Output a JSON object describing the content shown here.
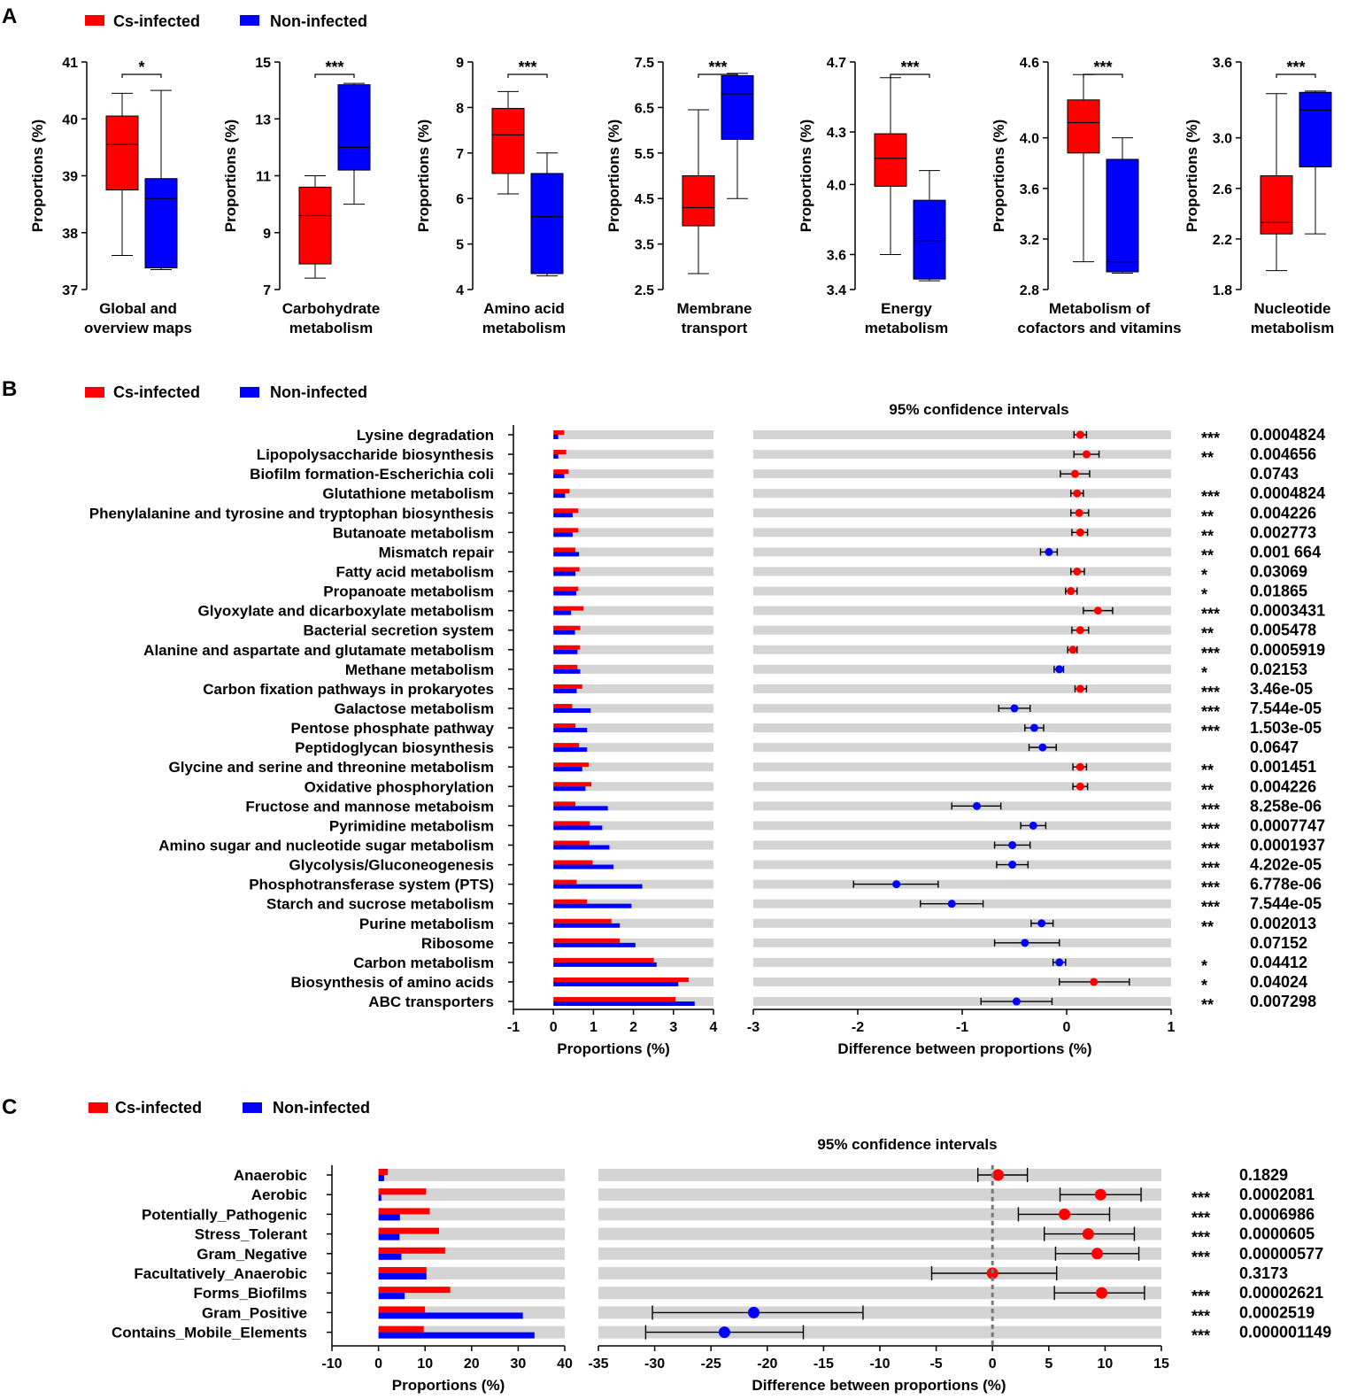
{
  "colors": {
    "infected": "#ff0000",
    "noninfected": "#0000ff",
    "track": "#d4d4d4"
  },
  "panels": {
    "a": "A",
    "b": "B",
    "c": "C"
  },
  "legend": {
    "infected": "Cs-infected",
    "noninfected": "Non-infected"
  },
  "chart_data": [
    {
      "type": "box",
      "panel": "A",
      "ylabel": "Proportions (%)",
      "plots": [
        {
          "category": [
            "Global and",
            "overview maps"
          ],
          "ylim": [
            37,
            41
          ],
          "ticks": [
            37,
            38,
            39,
            40,
            41
          ],
          "tick_labels": [
            "37",
            "38",
            "39",
            "40",
            "41"
          ],
          "sig": "*",
          "infected": {
            "min": 37.6,
            "q1": 38.75,
            "median": 39.55,
            "q3": 40.05,
            "max": 40.45
          },
          "noninfected": {
            "min": 37.35,
            "q1": 37.38,
            "median": 38.6,
            "q3": 38.95,
            "max": 40.5
          }
        },
        {
          "category": [
            "Carbohydrate",
            "metabolism"
          ],
          "ylim": [
            7,
            15
          ],
          "ticks": [
            7,
            9,
            11,
            13,
            15
          ],
          "tick_labels": [
            "7",
            "9",
            "11",
            "13",
            "15"
          ],
          "sig": "***",
          "infected": {
            "min": 7.4,
            "q1": 7.9,
            "median": 9.6,
            "q3": 10.6,
            "max": 11.0
          },
          "noninfected": {
            "min": 10.0,
            "q1": 11.2,
            "median": 12.0,
            "q3": 14.2,
            "max": 14.25
          }
        },
        {
          "category": [
            "Amino acid",
            "metabolism"
          ],
          "ylim": [
            4,
            9
          ],
          "ticks": [
            4,
            5,
            6,
            7,
            8,
            9
          ],
          "tick_labels": [
            "4",
            "5",
            "6",
            "7",
            "8",
            "9"
          ],
          "sig": "***",
          "infected": {
            "min": 6.1,
            "q1": 6.55,
            "median": 7.4,
            "q3": 7.98,
            "max": 8.35
          },
          "noninfected": {
            "min": 4.3,
            "q1": 4.35,
            "median": 5.6,
            "q3": 6.55,
            "max": 7.0
          }
        },
        {
          "category": [
            "Membrane",
            "transport"
          ],
          "ylim": [
            2.5,
            7.5
          ],
          "ticks": [
            2.5,
            3.5,
            4.5,
            5.5,
            6.5,
            7.5
          ],
          "tick_labels": [
            "2.5",
            "3.5",
            "4.5",
            "5.5",
            "6.5",
            "7.5"
          ],
          "sig": "***",
          "infected": {
            "min": 2.85,
            "q1": 3.9,
            "median": 4.3,
            "q3": 5.0,
            "max": 6.45
          },
          "noninfected": {
            "min": 4.5,
            "q1": 5.8,
            "median": 6.8,
            "q3": 7.2,
            "max": 7.25
          }
        },
        {
          "category": [
            "Energy",
            "metabolism"
          ],
          "ylim": [
            3.4,
            4.7
          ],
          "ticks": [
            3.4,
            3.6,
            4.0,
            4.3,
            4.7
          ],
          "tick_labels": [
            "3.4",
            "3.6",
            "4.0",
            "4.3",
            "4.7"
          ],
          "sig": "***",
          "infected": {
            "min": 3.6,
            "q1": 3.99,
            "median": 4.15,
            "q3": 4.29,
            "max": 4.61
          },
          "noninfected": {
            "min": 3.45,
            "q1": 3.46,
            "median": 3.68,
            "q3": 3.91,
            "max": 4.08
          }
        },
        {
          "category": [
            "Metabolism of",
            "cofactors and vitamins"
          ],
          "ylim": [
            2.8,
            4.6
          ],
          "ticks": [
            2.8,
            3.2,
            3.6,
            4.0,
            4.6
          ],
          "tick_labels": [
            "2.8",
            "3.2",
            "3.6",
            "4.0",
            "4.6"
          ],
          "sig": "***",
          "infected": {
            "min": 3.02,
            "q1": 3.88,
            "median": 4.12,
            "q3": 4.3,
            "max": 4.5
          },
          "noninfected": {
            "min": 2.93,
            "q1": 2.94,
            "median": 3.02,
            "q3": 3.83,
            "max": 4.0
          }
        },
        {
          "category": [
            "Nucleotide",
            "metabolism"
          ],
          "ylim": [
            1.8,
            3.6
          ],
          "ticks": [
            1.8,
            2.2,
            2.6,
            3.0,
            3.6
          ],
          "tick_labels": [
            "1.8",
            "2.2",
            "2.6",
            "3.0",
            "3.6"
          ],
          "sig": "***",
          "infected": {
            "min": 1.95,
            "q1": 2.24,
            "median": 2.33,
            "q3": 2.7,
            "max": 3.35
          },
          "noninfected": {
            "min": 2.24,
            "q1": 2.77,
            "median": 3.22,
            "q3": 3.36,
            "max": 3.37
          }
        }
      ]
    },
    {
      "type": "extended_error_bar",
      "panel": "B",
      "title": "95% confidence intervals",
      "xlabel_left": "Proportions (%)",
      "xlabel_right": "Difference between proportions (%)",
      "left_xlim": [
        -1,
        4
      ],
      "left_ticks": [
        "-1",
        "0",
        "1",
        "2",
        "3",
        "4"
      ],
      "right_xlim": [
        -3,
        1
      ],
      "right_ticks": [
        "-3",
        "-2",
        "-1",
        "0",
        "1"
      ],
      "rows": [
        {
          "label": "Lysine degradation",
          "infected": 0.27,
          "noninfected": 0.12,
          "diff": 0.13,
          "lo": 0.07,
          "hi": 0.19,
          "sig": "***",
          "p": "0.0004824"
        },
        {
          "label": "Lipopolysaccharide biosynthesis",
          "infected": 0.32,
          "noninfected": 0.12,
          "diff": 0.19,
          "lo": 0.07,
          "hi": 0.31,
          "sig": "**",
          "p": "0.004656"
        },
        {
          "label": "Biofilm formation-Escherichia coli",
          "infected": 0.38,
          "noninfected": 0.27,
          "diff": 0.08,
          "lo": -0.06,
          "hi": 0.22,
          "sig": "",
          "p": "0.0743"
        },
        {
          "label": "Glutathione metabolism",
          "infected": 0.4,
          "noninfected": 0.29,
          "diff": 0.1,
          "lo": 0.04,
          "hi": 0.16,
          "sig": "***",
          "p": "0.0004824"
        },
        {
          "label": "Phenylalanine and tyrosine and tryptophan biosynthesis",
          "infected": 0.62,
          "noninfected": 0.48,
          "diff": 0.12,
          "lo": 0.04,
          "hi": 0.21,
          "sig": "**",
          "p": "0.004226"
        },
        {
          "label": "Butanoate metabolism",
          "infected": 0.62,
          "noninfected": 0.48,
          "diff": 0.13,
          "lo": 0.05,
          "hi": 0.2,
          "sig": "**",
          "p": "0.002773"
        },
        {
          "label": "Mismatch repair",
          "infected": 0.55,
          "noninfected": 0.64,
          "diff": -0.17,
          "lo": -0.25,
          "hi": -0.09,
          "sig": "**",
          "p": "0.001 664"
        },
        {
          "label": "Fatty acid metabolism",
          "infected": 0.65,
          "noninfected": 0.55,
          "diff": 0.1,
          "lo": 0.04,
          "hi": 0.17,
          "sig": "*",
          "p": "0.03069"
        },
        {
          "label": "Propanoate metabolism",
          "infected": 0.62,
          "noninfected": 0.57,
          "diff": 0.04,
          "lo": -0.01,
          "hi": 0.1,
          "sig": "*",
          "p": "0.01865"
        },
        {
          "label": "Glyoxylate and dicarboxylate metabolism",
          "infected": 0.75,
          "noninfected": 0.44,
          "diff": 0.3,
          "lo": 0.16,
          "hi": 0.44,
          "sig": "***",
          "p": "0.0003431"
        },
        {
          "label": "Bacterial secretion system",
          "infected": 0.67,
          "noninfected": 0.54,
          "diff": 0.13,
          "lo": 0.05,
          "hi": 0.21,
          "sig": "**",
          "p": "0.005478"
        },
        {
          "label": "Alanine and aspartate and glutamate metabolism",
          "infected": 0.66,
          "noninfected": 0.6,
          "diff": 0.06,
          "lo": 0.01,
          "hi": 0.1,
          "sig": "***",
          "p": "0.0005919"
        },
        {
          "label": "Methane metabolism",
          "infected": 0.6,
          "noninfected": 0.67,
          "diff": -0.07,
          "lo": -0.12,
          "hi": -0.03,
          "sig": "*",
          "p": "0.02153"
        },
        {
          "label": "Carbon fixation pathways in prokaryotes",
          "infected": 0.72,
          "noninfected": 0.58,
          "diff": 0.13,
          "lo": 0.08,
          "hi": 0.19,
          "sig": "***",
          "p": "3.46e-05"
        },
        {
          "label": "Galactose metabolism",
          "infected": 0.47,
          "noninfected": 0.93,
          "diff": -0.5,
          "lo": -0.65,
          "hi": -0.35,
          "sig": "***",
          "p": "7.544e-05"
        },
        {
          "label": "Pentose phosphate pathway",
          "infected": 0.55,
          "noninfected": 0.84,
          "diff": -0.31,
          "lo": -0.4,
          "hi": -0.22,
          "sig": "***",
          "p": "1.503e-05"
        },
        {
          "label": "Peptidoglycan biosynthesis",
          "infected": 0.64,
          "noninfected": 0.84,
          "diff": -0.23,
          "lo": -0.36,
          "hi": -0.1,
          "sig": "",
          "p": "0.0647"
        },
        {
          "label": "Glycine and serine and threonine metabolism",
          "infected": 0.88,
          "noninfected": 0.72,
          "diff": 0.13,
          "lo": 0.06,
          "hi": 0.19,
          "sig": "**",
          "p": "0.001451"
        },
        {
          "label": "Oxidative phosphorylation",
          "infected": 0.95,
          "noninfected": 0.8,
          "diff": 0.13,
          "lo": 0.06,
          "hi": 0.2,
          "sig": "**",
          "p": "0.004226"
        },
        {
          "label": "Fructose and mannose metaboism",
          "infected": 0.55,
          "noninfected": 1.36,
          "diff": -0.86,
          "lo": -1.1,
          "hi": -0.63,
          "sig": "***",
          "p": "8.258e-06"
        },
        {
          "label": "Pyrimidine metabolism",
          "infected": 0.91,
          "noninfected": 1.22,
          "diff": -0.32,
          "lo": -0.44,
          "hi": -0.2,
          "sig": "***",
          "p": "0.0007747"
        },
        {
          "label": "Amino sugar and nucleotide sugar metabolism",
          "infected": 0.9,
          "noninfected": 1.4,
          "diff": -0.52,
          "lo": -0.69,
          "hi": -0.35,
          "sig": "***",
          "p": "0.0001937"
        },
        {
          "label": "Glycolysis/Gluconeogenesis",
          "infected": 0.98,
          "noninfected": 1.5,
          "diff": -0.52,
          "lo": -0.67,
          "hi": -0.37,
          "sig": "***",
          "p": "4.202e-05"
        },
        {
          "label": "Phosphotransferase system (PTS)",
          "infected": 0.58,
          "noninfected": 2.22,
          "diff": -1.63,
          "lo": -2.04,
          "hi": -1.23,
          "sig": "***",
          "p": "6.778e-06"
        },
        {
          "label": "Starch and sucrose metabolism",
          "infected": 0.84,
          "noninfected": 1.95,
          "diff": -1.1,
          "lo": -1.4,
          "hi": -0.8,
          "sig": "***",
          "p": "7.544e-05"
        },
        {
          "label": "Purine metabolism",
          "infected": 1.45,
          "noninfected": 1.66,
          "diff": -0.24,
          "lo": -0.34,
          "hi": -0.13,
          "sig": "**",
          "p": "0.002013"
        },
        {
          "label": "Ribosome",
          "infected": 1.66,
          "noninfected": 2.05,
          "diff": -0.4,
          "lo": -0.69,
          "hi": -0.07,
          "sig": "",
          "p": "0.07152"
        },
        {
          "label": "Carbon metabolism",
          "infected": 2.51,
          "noninfected": 2.58,
          "diff": -0.07,
          "lo": -0.13,
          "hi": -0.01,
          "sig": "*",
          "p": "0.04412"
        },
        {
          "label": "Biosynthesis of amino acids",
          "infected": 3.38,
          "noninfected": 3.12,
          "diff": 0.26,
          "lo": -0.07,
          "hi": 0.6,
          "sig": "*",
          "p": "0.04024"
        },
        {
          "label": "ABC transporters",
          "infected": 3.05,
          "noninfected": 3.53,
          "diff": -0.48,
          "lo": -0.82,
          "hi": -0.14,
          "sig": "**",
          "p": "0.007298"
        }
      ]
    },
    {
      "type": "extended_error_bar",
      "panel": "C",
      "title": "95% confidence intervals",
      "xlabel_left": "Proportions (%)",
      "xlabel_right": "Difference between proportions (%)",
      "left_xlim": [
        -10,
        40
      ],
      "left_ticks": [
        "-10",
        "0",
        "10",
        "20",
        "30",
        "40"
      ],
      "right_xlim": [
        -35,
        15
      ],
      "right_ticks": [
        "-35",
        "-30",
        "-25",
        "-20",
        "-15",
        "-10",
        "-5",
        "0",
        "5",
        "10",
        "15"
      ],
      "rows": [
        {
          "label": "Anaerobic",
          "infected": 2.0,
          "noninfected": 1.2,
          "diff": 0.5,
          "lo": -1.3,
          "hi": 3.1,
          "sig": "",
          "p": "0.1829"
        },
        {
          "label": "Aerobic",
          "infected": 10.2,
          "noninfected": 0.6,
          "diff": 9.6,
          "lo": 6.0,
          "hi": 13.2,
          "sig": "***",
          "p": "0.0002081"
        },
        {
          "label": "Potentially_Pathogenic",
          "infected": 11.0,
          "noninfected": 4.6,
          "diff": 6.4,
          "lo": 2.3,
          "hi": 10.4,
          "sig": "***",
          "p": "0.0006986"
        },
        {
          "label": "Stress_Tolerant",
          "infected": 13.0,
          "noninfected": 4.5,
          "diff": 8.5,
          "lo": 4.6,
          "hi": 12.6,
          "sig": "***",
          "p": "0.0000605"
        },
        {
          "label": "Gram_Negative",
          "infected": 14.3,
          "noninfected": 4.9,
          "diff": 9.3,
          "lo": 5.6,
          "hi": 13.0,
          "sig": "***",
          "p": "0.00000577"
        },
        {
          "label": "Facultatively_Anaerobic",
          "infected": 10.3,
          "noninfected": 10.3,
          "diff": 0.0,
          "lo": -5.4,
          "hi": 5.7,
          "sig": "",
          "p": "0.3173"
        },
        {
          "label": "Forms_Biofilms",
          "infected": 15.4,
          "noninfected": 5.6,
          "diff": 9.7,
          "lo": 5.5,
          "hi": 13.5,
          "sig": "***",
          "p": "0.00002621"
        },
        {
          "label": "Gram_Positive",
          "infected": 10.0,
          "noninfected": 31.0,
          "diff": -21.2,
          "lo": -30.2,
          "hi": -11.5,
          "sig": "***",
          "p": "0.0002519"
        },
        {
          "label": "Contains_Mobile_Elements",
          "infected": 9.7,
          "noninfected": 33.5,
          "diff": -23.8,
          "lo": -30.8,
          "hi": -16.8,
          "sig": "***",
          "p": "0.000001149"
        }
      ]
    }
  ]
}
